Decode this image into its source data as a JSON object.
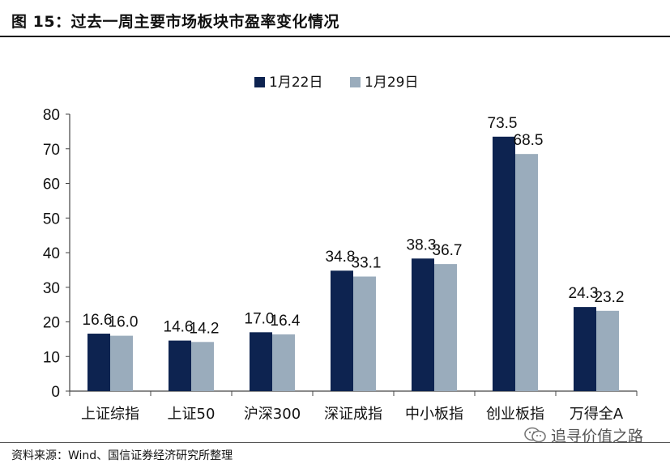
{
  "header": {
    "title": "图  15：过去一周主要市场板块市盈率变化情况"
  },
  "footer": {
    "source": "资料来源：Wind、国信证券经济研究所整理",
    "watermark": "追寻价值之路"
  },
  "colors": {
    "series1": "#0d2350",
    "series2": "#9aacbc",
    "axis": "#444444"
  },
  "chart_data": {
    "type": "bar",
    "categories": [
      "上证综指",
      "上证50",
      "沪深300",
      "深证成指",
      "中小板指",
      "创业板指",
      "万得全A"
    ],
    "series": [
      {
        "name": "1月22日",
        "values": [
          16.6,
          14.6,
          17.0,
          34.8,
          38.3,
          73.5,
          24.3
        ],
        "labels": [
          "16.6",
          "14.6",
          "17.0",
          "34.8",
          "38.3",
          "73.5",
          "24.3"
        ]
      },
      {
        "name": "1月29日",
        "values": [
          16.0,
          14.2,
          16.4,
          33.1,
          36.7,
          68.5,
          23.2
        ],
        "labels": [
          "16.0",
          "14.2",
          "16.4",
          "33.1",
          "36.7",
          "68.5",
          "23.2"
        ]
      }
    ],
    "ylim": [
      0,
      80
    ],
    "yticks": [
      "0",
      "10",
      "20",
      "30",
      "40",
      "50",
      "60",
      "70",
      "80"
    ],
    "xlabel": "",
    "ylabel": "",
    "grid": false,
    "legend": "top-center"
  }
}
